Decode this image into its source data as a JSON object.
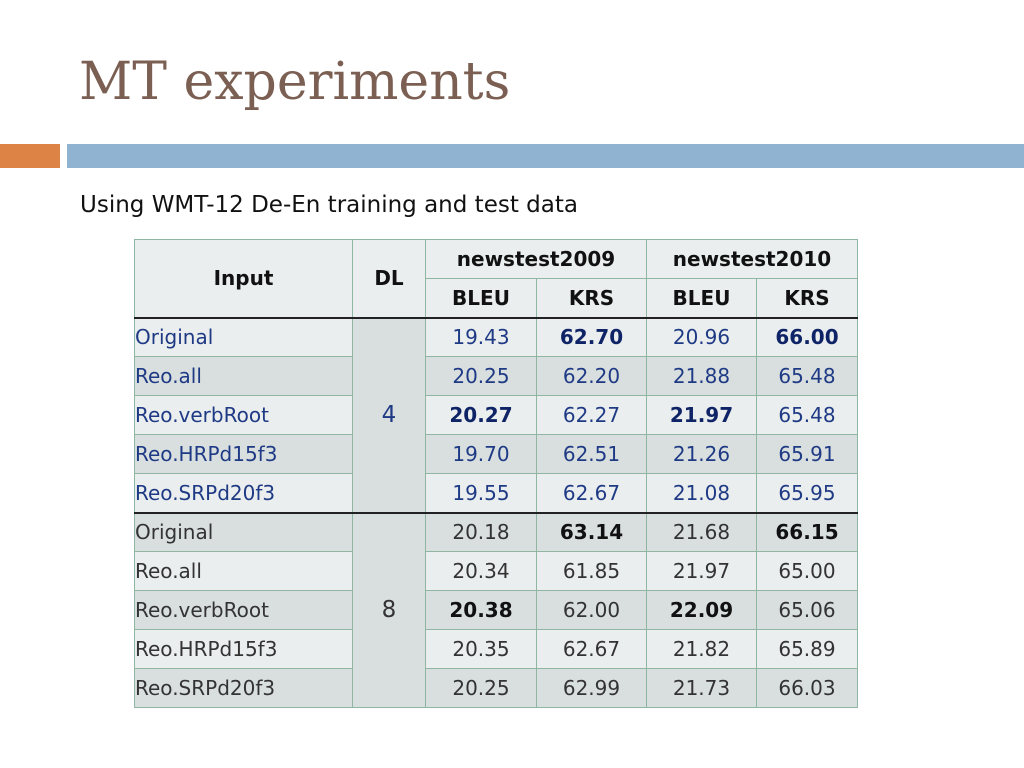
{
  "slide": {
    "title": "MT experiments",
    "subtitle": "Using WMT-12 De-En training and test data"
  },
  "colors": {
    "title": "#7a5f52",
    "accent_orange": "#dd8346",
    "accent_blue": "#90b3d2",
    "group1_text": "#1f3a85"
  },
  "table": {
    "headers": {
      "input": "Input",
      "dl": "DL",
      "set1": "newstest2009",
      "set2": "newstest2010",
      "bleu": "BLEU",
      "krs": "KRS"
    },
    "groups": [
      {
        "dl": "4",
        "rows": [
          {
            "input": "Original",
            "v": [
              "19.43",
              "62.70",
              "20.96",
              "66.00"
            ]
          },
          {
            "input": "Reo.all",
            "v": [
              "20.25",
              "62.20",
              "21.88",
              "65.48"
            ]
          },
          {
            "input": "Reo.verbRoot",
            "v": [
              "20.27",
              "62.27",
              "21.97",
              "65.48"
            ]
          },
          {
            "input": "Reo.HRPd15f3",
            "v": [
              "19.70",
              "62.51",
              "21.26",
              "65.91"
            ]
          },
          {
            "input": "Reo.SRPd20f3",
            "v": [
              "19.55",
              "62.67",
              "21.08",
              "65.95"
            ]
          }
        ]
      },
      {
        "dl": "8",
        "rows": [
          {
            "input": "Original",
            "v": [
              "20.18",
              "63.14",
              "21.68",
              "66.15"
            ]
          },
          {
            "input": "Reo.all",
            "v": [
              "20.34",
              "61.85",
              "21.97",
              "65.00"
            ]
          },
          {
            "input": "Reo.verbRoot",
            "v": [
              "20.38",
              "62.00",
              "22.09",
              "65.06"
            ]
          },
          {
            "input": "Reo.HRPd15f3",
            "v": [
              "20.35",
              "62.67",
              "21.82",
              "65.89"
            ]
          },
          {
            "input": "Reo.SRPd20f3",
            "v": [
              "20.25",
              "62.99",
              "21.73",
              "66.03"
            ]
          }
        ]
      }
    ]
  }
}
